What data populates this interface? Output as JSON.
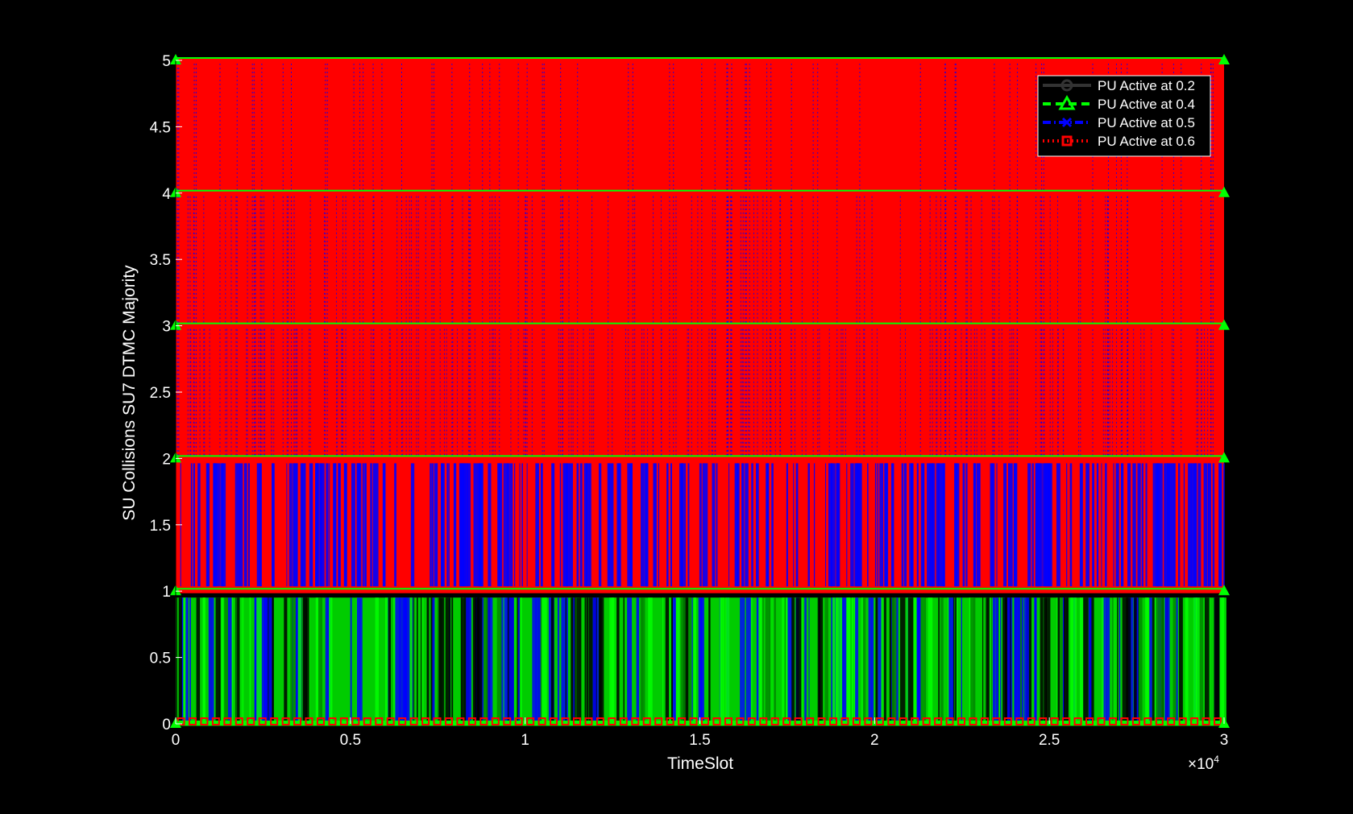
{
  "chart_data": {
    "type": "line",
    "xlabel": "TimeSlot",
    "ylabel": "SU Collisions SU7 DTMC Majority",
    "x_multiplier_label": "×10",
    "x_multiplier_exponent": "4",
    "xlim": [
      0,
      30000
    ],
    "ylim": [
      0,
      5
    ],
    "x_ticks": [
      0,
      5000,
      10000,
      15000,
      20000,
      25000,
      30000
    ],
    "x_tick_labels": [
      "0",
      "0.5",
      "1",
      "1.5",
      "2",
      "2.5",
      "3"
    ],
    "y_ticks": [
      0,
      0.5,
      1,
      1.5,
      2,
      2.5,
      3,
      3.5,
      4,
      4.5,
      5
    ],
    "y_tick_labels": [
      "0",
      "0.5",
      "1",
      "1.5",
      "2",
      "2.5",
      "3",
      "3.5",
      "4",
      "4.5",
      "5"
    ],
    "legend_position": "top-right",
    "background": "#000000",
    "series": [
      {
        "name": "PU Active at 0.2",
        "color": "#000000",
        "line_style": "solid",
        "marker": "circle",
        "value_range": [
          0,
          1
        ]
      },
      {
        "name": "PU Active at 0.4",
        "color": "#00ff00",
        "line_style": "dashed",
        "marker": "triangle",
        "value_range": [
          0,
          5
        ]
      },
      {
        "name": "PU Active at 0.5",
        "color": "#0000ff",
        "line_style": "dashdot",
        "marker": "x",
        "value_range": [
          0,
          5
        ]
      },
      {
        "name": "PU Active at 0.6",
        "color": "#ff0000",
        "line_style": "dotted",
        "marker": "square",
        "value_range": [
          0,
          5
        ]
      }
    ]
  }
}
